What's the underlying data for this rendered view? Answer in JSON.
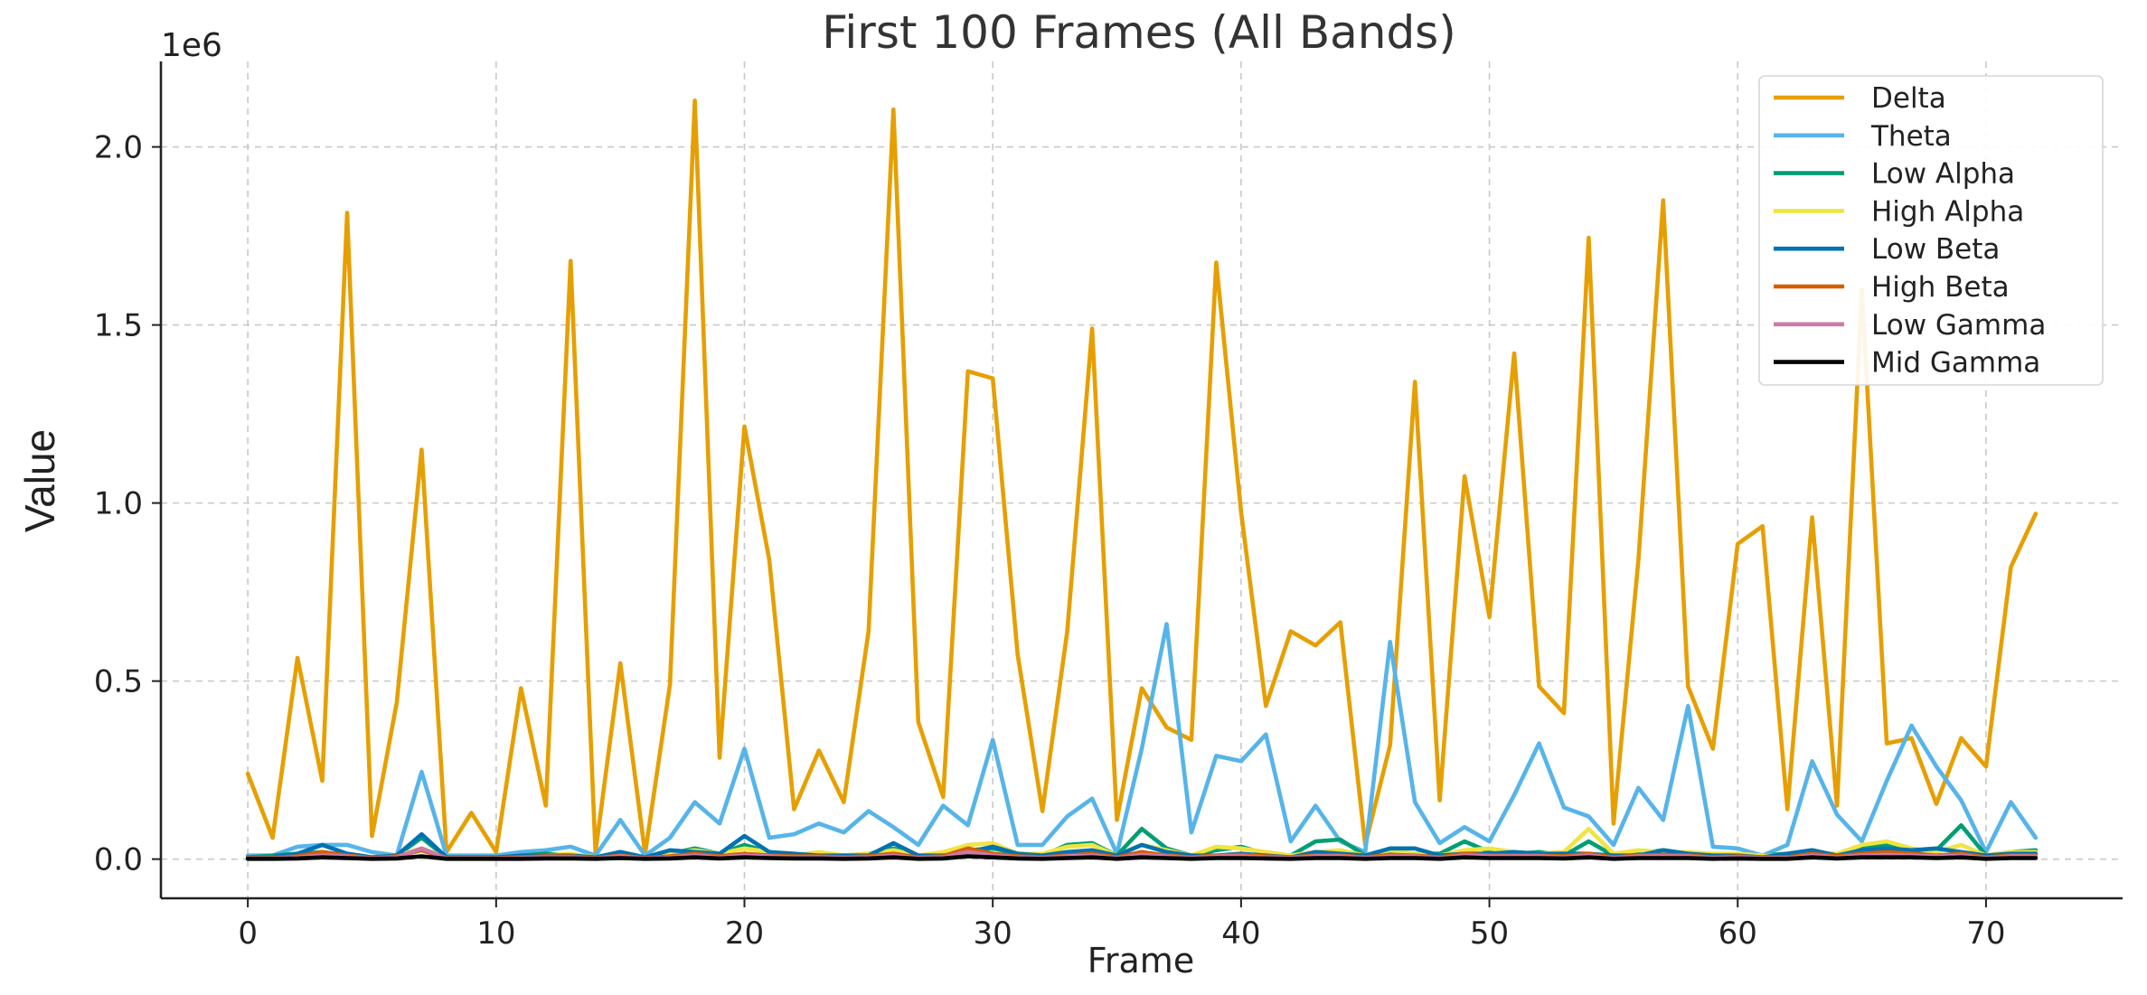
{
  "chart_data": {
    "type": "line",
    "title": "First 100 Frames (All Bands)",
    "xlabel": "Frame",
    "ylabel": "Value",
    "y_scale_label": "1e6",
    "xlim": [
      -3.5,
      75.5
    ],
    "ylim": [
      -110000,
      2240000
    ],
    "xticks": [
      0,
      10,
      20,
      30,
      40,
      50,
      60,
      70
    ],
    "yticks": [
      0,
      500000,
      1000000,
      1500000,
      2000000
    ],
    "ytick_labels": [
      "0.0",
      "0.5",
      "1.0",
      "1.5",
      "2.0"
    ],
    "grid": true,
    "legend_position": "top-right",
    "x": [
      0,
      1,
      2,
      3,
      4,
      5,
      6,
      7,
      8,
      9,
      10,
      11,
      12,
      13,
      14,
      15,
      16,
      17,
      18,
      19,
      20,
      21,
      22,
      23,
      24,
      25,
      26,
      27,
      28,
      29,
      30,
      31,
      32,
      33,
      34,
      35,
      36,
      37,
      38,
      39,
      40,
      41,
      42,
      43,
      44,
      45,
      46,
      47,
      48,
      49,
      50,
      51,
      52,
      53,
      54,
      55,
      56,
      57,
      58,
      59,
      60,
      61,
      62,
      63,
      64,
      65,
      66,
      67,
      68,
      69,
      70,
      71,
      72
    ],
    "series": [
      {
        "name": "Delta",
        "color": "#E69F00",
        "values": [
          240000,
          60000,
          565000,
          220000,
          1815000,
          65000,
          440000,
          1150000,
          20000,
          130000,
          20000,
          480000,
          150000,
          1680000,
          20000,
          550000,
          15000,
          490000,
          2130000,
          285000,
          1215000,
          840000,
          140000,
          305000,
          160000,
          640000,
          2105000,
          385000,
          175000,
          1370000,
          1350000,
          575000,
          135000,
          640000,
          1490000,
          110000,
          480000,
          370000,
          335000,
          1675000,
          975000,
          430000,
          640000,
          600000,
          665000,
          40000,
          320000,
          1340000,
          165000,
          1075000,
          680000,
          1420000,
          485000,
          410000,
          1745000,
          100000,
          840000,
          1850000,
          485000,
          310000,
          885000,
          935000,
          140000,
          960000,
          150000,
          1600000,
          325000,
          340000,
          155000,
          340000,
          260000,
          820000,
          970000
        ]
      },
      {
        "name": "Theta",
        "color": "#56B4E9",
        "values": [
          10000,
          10000,
          35000,
          40000,
          40000,
          20000,
          10000,
          245000,
          10000,
          10000,
          10000,
          20000,
          25000,
          35000,
          10000,
          110000,
          10000,
          60000,
          160000,
          100000,
          310000,
          60000,
          70000,
          100000,
          75000,
          135000,
          90000,
          40000,
          150000,
          95000,
          335000,
          40000,
          40000,
          120000,
          170000,
          15000,
          310000,
          660000,
          75000,
          290000,
          275000,
          350000,
          50000,
          150000,
          50000,
          20000,
          610000,
          160000,
          45000,
          90000,
          50000,
          180000,
          325000,
          145000,
          120000,
          40000,
          200000,
          110000,
          430000,
          35000,
          30000,
          10000,
          40000,
          275000,
          125000,
          50000,
          220000,
          375000,
          260000,
          165000,
          20000,
          160000,
          60000
        ]
      },
      {
        "name": "Low Alpha",
        "color": "#009E73",
        "values": [
          5000,
          10000,
          15000,
          20000,
          10000,
          5000,
          10000,
          60000,
          5000,
          5000,
          5000,
          10000,
          15000,
          10000,
          5000,
          20000,
          5000,
          15000,
          30000,
          15000,
          40000,
          20000,
          10000,
          15000,
          10000,
          15000,
          30000,
          10000,
          15000,
          25000,
          30000,
          15000,
          10000,
          40000,
          45000,
          10000,
          85000,
          30000,
          10000,
          25000,
          35000,
          15000,
          10000,
          50000,
          55000,
          10000,
          20000,
          15000,
          15000,
          50000,
          20000,
          15000,
          20000,
          10000,
          50000,
          10000,
          15000,
          25000,
          15000,
          10000,
          10000,
          10000,
          15000,
          25000,
          10000,
          30000,
          40000,
          20000,
          25000,
          95000,
          10000,
          20000,
          25000
        ]
      },
      {
        "name": "High Alpha",
        "color": "#F0E442",
        "values": [
          5000,
          5000,
          10000,
          15000,
          15000,
          5000,
          10000,
          30000,
          5000,
          5000,
          5000,
          10000,
          10000,
          15000,
          5000,
          15000,
          5000,
          15000,
          25000,
          15000,
          30000,
          20000,
          10000,
          20000,
          10000,
          15000,
          25000,
          10000,
          20000,
          40000,
          45000,
          15000,
          15000,
          35000,
          40000,
          10000,
          40000,
          25000,
          10000,
          35000,
          30000,
          20000,
          10000,
          20000,
          25000,
          10000,
          25000,
          15000,
          10000,
          25000,
          30000,
          20000,
          15000,
          20000,
          85000,
          15000,
          25000,
          20000,
          20000,
          15000,
          15000,
          10000,
          10000,
          20000,
          15000,
          40000,
          50000,
          30000,
          20000,
          40000,
          10000,
          20000,
          20000
        ]
      },
      {
        "name": "Low Beta",
        "color": "#0072B2",
        "values": [
          5000,
          5000,
          15000,
          40000,
          15000,
          5000,
          10000,
          70000,
          5000,
          5000,
          5000,
          10000,
          10000,
          10000,
          5000,
          20000,
          5000,
          25000,
          20000,
          15000,
          65000,
          20000,
          15000,
          10000,
          10000,
          10000,
          45000,
          10000,
          10000,
          20000,
          35000,
          15000,
          10000,
          20000,
          25000,
          10000,
          40000,
          20000,
          10000,
          10000,
          15000,
          10000,
          5000,
          20000,
          15000,
          10000,
          30000,
          30000,
          10000,
          15000,
          15000,
          20000,
          15000,
          15000,
          15000,
          10000,
          10000,
          25000,
          15000,
          10000,
          10000,
          5000,
          15000,
          25000,
          10000,
          25000,
          30000,
          25000,
          30000,
          20000,
          10000,
          15000,
          15000
        ]
      },
      {
        "name": "High Beta",
        "color": "#D55E00",
        "values": [
          3000,
          3000,
          8000,
          20000,
          10000,
          3000,
          8000,
          25000,
          3000,
          3000,
          3000,
          5000,
          8000,
          8000,
          3000,
          10000,
          3000,
          8000,
          15000,
          8000,
          15000,
          10000,
          8000,
          8000,
          5000,
          8000,
          15000,
          5000,
          8000,
          30000,
          15000,
          8000,
          5000,
          10000,
          15000,
          5000,
          20000,
          10000,
          5000,
          10000,
          12000,
          8000,
          5000,
          10000,
          10000,
          5000,
          12000,
          10000,
          5000,
          15000,
          10000,
          10000,
          10000,
          8000,
          15000,
          5000,
          10000,
          12000,
          10000,
          5000,
          8000,
          5000,
          5000,
          15000,
          8000,
          15000,
          20000,
          15000,
          10000,
          15000,
          5000,
          10000,
          10000
        ]
      },
      {
        "name": "Low Gamma",
        "color": "#CC79A7",
        "values": [
          2000,
          2000,
          5000,
          10000,
          8000,
          2000,
          5000,
          30000,
          2000,
          2000,
          2000,
          3000,
          5000,
          5000,
          2000,
          8000,
          2000,
          5000,
          10000,
          5000,
          10000,
          8000,
          5000,
          5000,
          3000,
          5000,
          10000,
          3000,
          5000,
          20000,
          10000,
          5000,
          3000,
          8000,
          10000,
          3000,
          12000,
          8000,
          3000,
          8000,
          8000,
          5000,
          3000,
          8000,
          8000,
          3000,
          8000,
          8000,
          3000,
          10000,
          8000,
          8000,
          8000,
          5000,
          10000,
          3000,
          8000,
          8000,
          8000,
          3000,
          5000,
          3000,
          3000,
          10000,
          5000,
          10000,
          12000,
          10000,
          8000,
          10000,
          3000,
          8000,
          8000
        ]
      },
      {
        "name": "Mid Gamma",
        "color": "#000000",
        "values": [
          1000,
          1000,
          2000,
          5000,
          3000,
          1000,
          2000,
          8000,
          1000,
          1000,
          1000,
          1000,
          2000,
          2000,
          1000,
          3000,
          1000,
          2000,
          5000,
          2000,
          5000,
          3000,
          2000,
          2000,
          1000,
          2000,
          5000,
          1000,
          2000,
          8000,
          5000,
          2000,
          1000,
          3000,
          5000,
          1000,
          5000,
          3000,
          1000,
          3000,
          3000,
          2000,
          1000,
          3000,
          3000,
          1000,
          3000,
          3000,
          1000,
          5000,
          3000,
          3000,
          3000,
          2000,
          5000,
          1000,
          3000,
          3000,
          3000,
          1000,
          2000,
          1000,
          1000,
          5000,
          2000,
          5000,
          5000,
          5000,
          3000,
          5000,
          1000,
          3000,
          3000
        ]
      }
    ]
  }
}
